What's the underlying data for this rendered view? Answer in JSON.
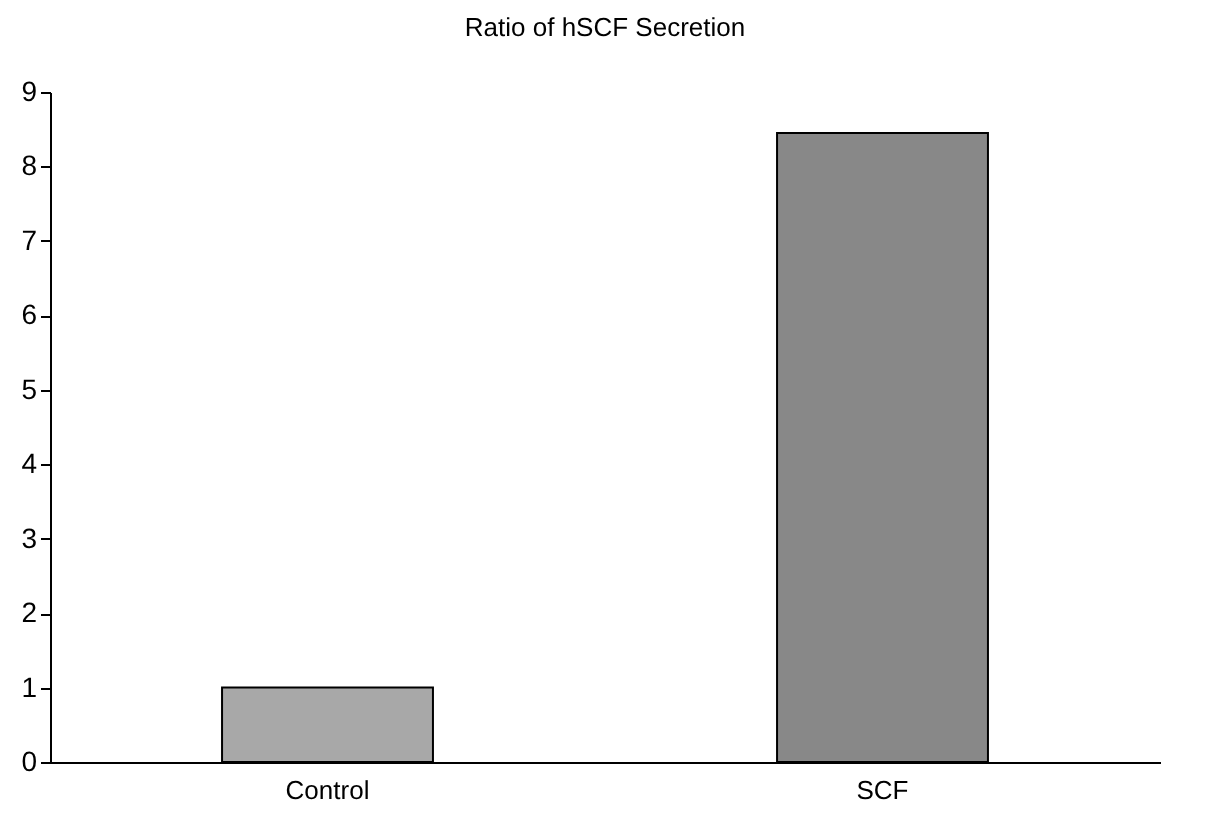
{
  "chart_data": {
    "type": "bar",
    "title": "Ratio of hSCF Secretion",
    "categories": [
      "Control",
      "SCF"
    ],
    "values": [
      1.0,
      8.45
    ],
    "colors": [
      "#a8a8a8",
      "#888888"
    ],
    "ylim": [
      0,
      9
    ],
    "yticks": [
      0,
      1,
      2,
      3,
      4,
      5,
      6,
      7,
      8,
      9
    ],
    "grid": false
  }
}
